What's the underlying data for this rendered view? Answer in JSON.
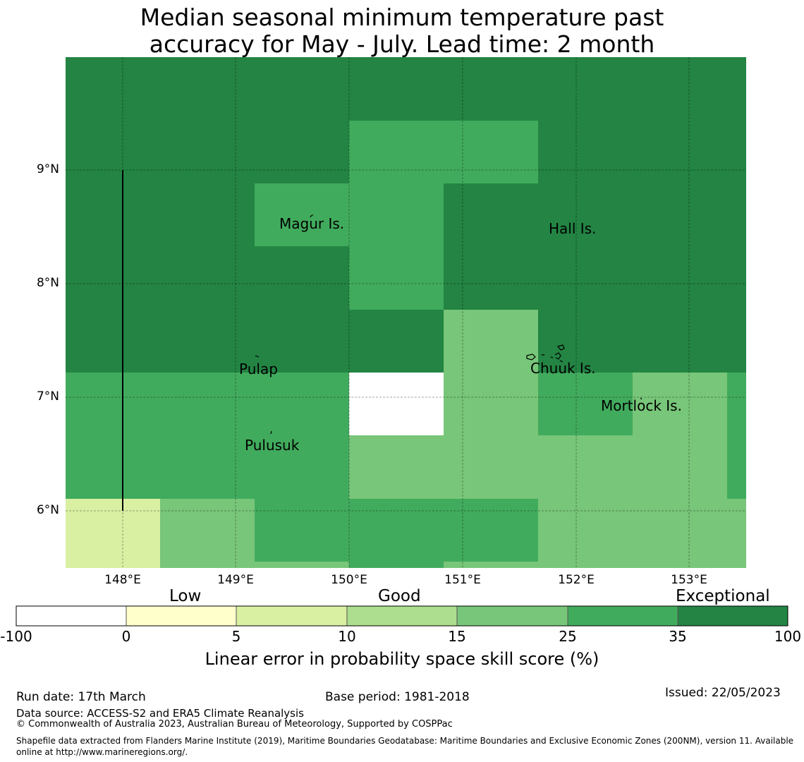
{
  "title": {
    "line1": "Median seasonal minimum temperature past",
    "line2": "accuracy for May - July. Lead time: 2 month"
  },
  "map": {
    "lon_ticks": [
      "148°E",
      "149°E",
      "150°E",
      "151°E",
      "152°E",
      "153°E"
    ],
    "lat_ticks": [
      "9°N",
      "8°N",
      "7°N",
      "6°N"
    ],
    "places": {
      "magur": "Magur Is.",
      "hall": "Hall Is.",
      "pulap": "Pulap",
      "chuuk": "Chuuk Is.",
      "mortlock": "Mortlock Is.",
      "pulusuk": "Pulusuk"
    },
    "colors": {
      "exceptional": "#238443",
      "very_good": "#41ab5d",
      "good": "#78c679",
      "fair": "#addd8e",
      "low": "#d9f0a3",
      "very_low": "#ffffcc",
      "none": "#ffffff"
    }
  },
  "colorbar": {
    "categories": {
      "low": "Low",
      "good": "Good",
      "exceptional": "Exceptional"
    },
    "ticks": [
      "-100",
      "0",
      "5",
      "10",
      "15",
      "25",
      "35",
      "100"
    ],
    "label": "Linear error in probability space skill score (%)"
  },
  "footer": {
    "run_date": "Run date: 17th March",
    "base_period": "Base period: 1981-2018",
    "issued": "Issued: 22/05/2023",
    "data_source": "Data source: ACCESS-S2 and ERA5 Climate Reanalysis",
    "copyright": "© Commonwealth of Australia 2023, Australian Bureau of Meteorology, Supported by COSPPac",
    "shapefile_line1": "Shapefile data extracted from Flanders Marine Institute (2019), Maritime Boundaries Geodatabase: Maritime Boundaries and Exclusive Economic Zones (200NM), version 11. Available",
    "shapefile_line2": "online at http://www.marineregions.org/."
  }
}
